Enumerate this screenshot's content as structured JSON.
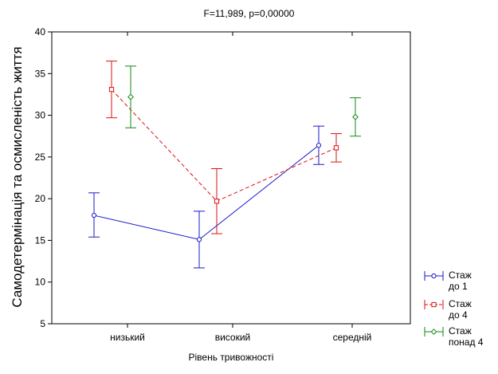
{
  "chart_data": {
    "type": "line",
    "title": "F=11,989, p=0,00000",
    "xlabel": "Рівень тривожності",
    "ylabel": "Самодетермінація та осмисленість життя",
    "categories": [
      "низький",
      "високий",
      "середній"
    ],
    "ylim": [
      5,
      40
    ],
    "yticks": [
      5,
      10,
      15,
      20,
      25,
      30,
      35,
      40
    ],
    "grid": false,
    "legend_position": "bottom-right",
    "error_bars": true,
    "series": [
      {
        "name": "Стаж до 1",
        "legend_lines": [
          "Стаж",
          "до 1"
        ],
        "color": "#1a1acc",
        "marker": "circle",
        "line_style": "solid",
        "values": [
          18.0,
          15.1,
          26.4
        ],
        "lower": [
          15.4,
          11.7,
          24.1
        ],
        "upper": [
          20.7,
          18.5,
          28.7
        ]
      },
      {
        "name": "Стаж до 4",
        "legend_lines": [
          "Стаж",
          "до 4"
        ],
        "color": "#dd1111",
        "marker": "square",
        "line_style": "dashed",
        "values": [
          33.1,
          19.7,
          26.1
        ],
        "lower": [
          29.7,
          15.8,
          24.4
        ],
        "upper": [
          36.5,
          23.6,
          27.8
        ]
      },
      {
        "name": "Стаж понад 4",
        "legend_lines": [
          "Стаж",
          "понад 4"
        ],
        "color": "#118811",
        "marker": "diamond",
        "line_style": "none",
        "values": [
          32.2,
          null,
          29.8
        ],
        "lower": [
          28.5,
          null,
          27.5
        ],
        "upper": [
          35.9,
          null,
          32.1
        ]
      }
    ]
  }
}
